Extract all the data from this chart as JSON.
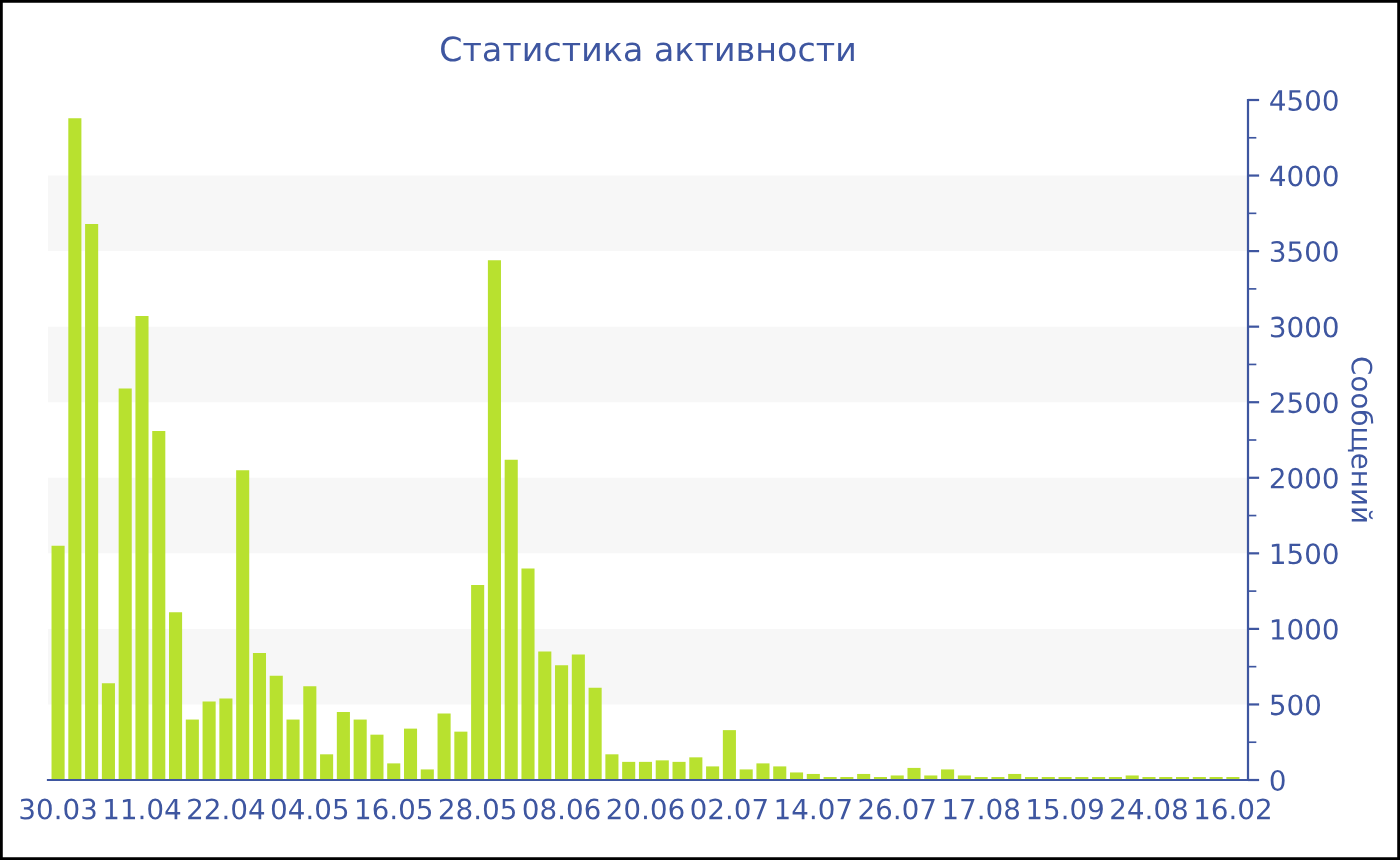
{
  "chart_data": {
    "type": "bar",
    "title": "Статистика активности",
    "ylabel": "Сообщений",
    "categories": [
      "30.03",
      null,
      null,
      null,
      null,
      "11.04",
      null,
      null,
      null,
      null,
      "22.04",
      null,
      null,
      null,
      null,
      "04.05",
      null,
      null,
      null,
      null,
      "16.05",
      null,
      null,
      null,
      null,
      "28.05",
      null,
      null,
      null,
      null,
      "08.06",
      null,
      null,
      null,
      null,
      "20.06",
      null,
      null,
      null,
      null,
      "02.07",
      null,
      null,
      null,
      null,
      "14.07",
      null,
      null,
      null,
      null,
      "26.07",
      null,
      null,
      null,
      null,
      "17.08",
      null,
      null,
      null,
      null,
      "15.09",
      null,
      null,
      null,
      null,
      "24.08",
      null,
      null,
      null,
      null,
      "16.02"
    ],
    "values": [
      1550,
      4380,
      3680,
      640,
      2590,
      3070,
      2310,
      1110,
      400,
      520,
      540,
      2050,
      840,
      690,
      400,
      620,
      170,
      450,
      400,
      300,
      110,
      340,
      70,
      440,
      320,
      1290,
      3440,
      2120,
      1400,
      850,
      760,
      830,
      610,
      170,
      120,
      120,
      130,
      120,
      150,
      90,
      330,
      70,
      110,
      90,
      50,
      40,
      20,
      20,
      40,
      20,
      30,
      80,
      30,
      70,
      30,
      20,
      20,
      40,
      20,
      20,
      20,
      20,
      20,
      20,
      30,
      20,
      20,
      20,
      20,
      20,
      20
    ],
    "color": "#b8e12f",
    "ylim": [
      0,
      4500
    ],
    "yticks": [
      0,
      500,
      1000,
      1500,
      2000,
      2500,
      3000,
      3500,
      4000,
      4500
    ],
    "bands": [
      {
        "axis": "y",
        "from": 500,
        "to": 1000,
        "color": "#f7f7f7"
      },
      {
        "axis": "y",
        "from": 1500,
        "to": 2000,
        "color": "#f7f7f7"
      },
      {
        "axis": "y",
        "from": 2500,
        "to": 3000,
        "color": "#f7f7f7"
      },
      {
        "axis": "y",
        "from": 3500,
        "to": 4000,
        "color": "#f7f7f7"
      }
    ],
    "grid": false,
    "legend": false
  }
}
